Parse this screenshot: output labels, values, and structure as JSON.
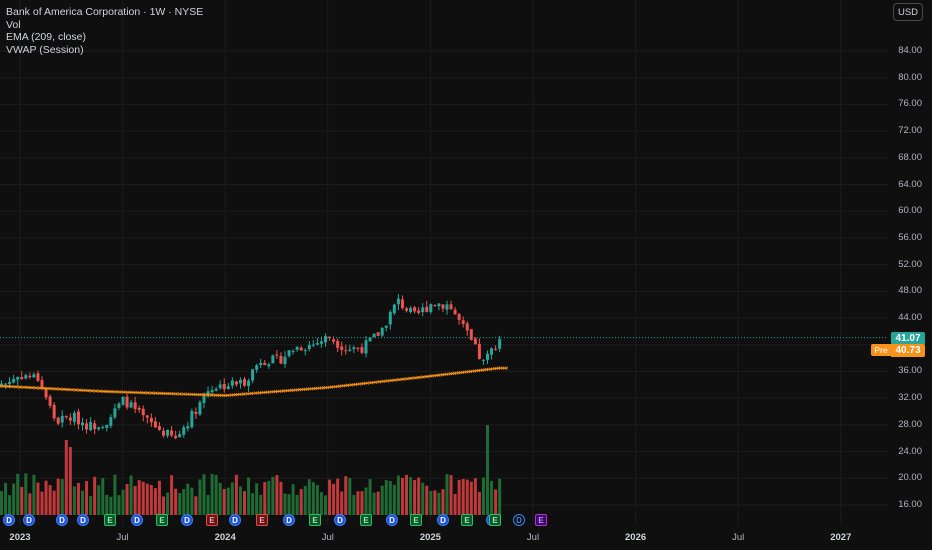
{
  "legend": {
    "title": "Bank of America Corporation · 1W · NYSE",
    "vol": "Vol",
    "ema": "EMA (209, close)",
    "vwap": "VWAP (Session)"
  },
  "currency_button": "USD",
  "y_ticks": [
    "84.00",
    "80.00",
    "76.00",
    "72.00",
    "68.00",
    "64.00",
    "60.00",
    "56.00",
    "52.00",
    "48.00",
    "44.00",
    "40.00",
    "36.00",
    "32.00",
    "28.00",
    "24.00",
    "20.00",
    "16.00"
  ],
  "x_ticks": [
    {
      "label": "2023",
      "bold": true
    },
    {
      "label": "Jul",
      "bold": false
    },
    {
      "label": "2024",
      "bold": true
    },
    {
      "label": "Jul",
      "bold": false
    },
    {
      "label": "2025",
      "bold": true
    },
    {
      "label": "Jul",
      "bold": false
    },
    {
      "label": "2026",
      "bold": true
    },
    {
      "label": "Jul",
      "bold": false
    },
    {
      "label": "2027",
      "bold": true
    }
  ],
  "last_price": "41.07",
  "pre_label": "Pre",
  "pre_price": "40.73",
  "colors": {
    "up": "#26a69a",
    "down": "#ef5350",
    "vol_up": "#1e6b33",
    "vol_down": "#c0393b",
    "ema": "#f7931a",
    "last_price_tag": "#26a69a",
    "pre_tag": "#f7931a"
  },
  "chart_data": {
    "type": "candlestick",
    "symbol": "BAC",
    "interval": "1W",
    "exchange": "NYSE",
    "currency": "USD",
    "ylim": [
      14,
      87
    ],
    "x_range": [
      "2022-12",
      "2027-03"
    ],
    "indicators": [
      "Vol",
      "EMA (209, close)",
      "VWAP (Session)"
    ],
    "close_path": [
      {
        "date": "2022-12",
        "close": 34.2
      },
      {
        "date": "2023-01",
        "close": 35.5
      },
      {
        "date": "2023-02",
        "close": 35.0
      },
      {
        "date": "2023-03",
        "close": 28.5
      },
      {
        "date": "2023-04",
        "close": 29.2
      },
      {
        "date": "2023-05",
        "close": 27.8
      },
      {
        "date": "2023-06",
        "close": 28.6
      },
      {
        "date": "2023-07",
        "close": 31.8
      },
      {
        "date": "2023-08",
        "close": 29.2
      },
      {
        "date": "2023-09",
        "close": 27.4
      },
      {
        "date": "2023-10",
        "close": 25.8
      },
      {
        "date": "2023-11",
        "close": 29.6
      },
      {
        "date": "2023-12",
        "close": 33.6
      },
      {
        "date": "2024-01",
        "close": 34.0
      },
      {
        "date": "2024-02",
        "close": 34.4
      },
      {
        "date": "2024-03",
        "close": 37.8
      },
      {
        "date": "2024-04",
        "close": 37.6
      },
      {
        "date": "2024-05",
        "close": 39.6
      },
      {
        "date": "2024-06",
        "close": 40.0
      },
      {
        "date": "2024-07",
        "close": 41.2
      },
      {
        "date": "2024-08",
        "close": 39.4
      },
      {
        "date": "2024-09",
        "close": 39.6
      },
      {
        "date": "2024-10",
        "close": 42.0
      },
      {
        "date": "2024-11",
        "close": 46.6
      },
      {
        "date": "2024-12",
        "close": 44.2
      },
      {
        "date": "2025-01",
        "close": 46.3
      },
      {
        "date": "2025-02",
        "close": 46.0
      },
      {
        "date": "2025-03",
        "close": 41.8
      },
      {
        "date": "2025-04",
        "close": 37.2
      },
      {
        "date": "2025-05",
        "close": 41.1
      }
    ],
    "ema_209": [
      {
        "date": "2022-12",
        "value": 33.8
      },
      {
        "date": "2023-06",
        "value": 33.0
      },
      {
        "date": "2024-01",
        "value": 32.4
      },
      {
        "date": "2024-07",
        "value": 33.6
      },
      {
        "date": "2025-01",
        "value": 35.3
      },
      {
        "date": "2025-05",
        "value": 36.5
      }
    ],
    "last_close": 41.07,
    "pre_market": 40.73
  },
  "event_markers": [
    {
      "type": "D",
      "variant": "d"
    },
    {
      "type": "D",
      "variant": "d"
    },
    {
      "type": "D",
      "variant": "d"
    },
    {
      "type": "D",
      "variant": "d"
    },
    {
      "type": "E",
      "variant": "green"
    },
    {
      "type": "D",
      "variant": "d"
    },
    {
      "type": "E",
      "variant": "green"
    },
    {
      "type": "D",
      "variant": "d"
    },
    {
      "type": "E",
      "variant": "red"
    },
    {
      "type": "D",
      "variant": "d"
    },
    {
      "type": "E",
      "variant": "red"
    },
    {
      "type": "D",
      "variant": "d"
    },
    {
      "type": "E",
      "variant": "green"
    },
    {
      "type": "D",
      "variant": "d"
    },
    {
      "type": "E",
      "variant": "green"
    },
    {
      "type": "D",
      "variant": "d"
    },
    {
      "type": "E",
      "variant": "green"
    },
    {
      "type": "D",
      "variant": "d"
    },
    {
      "type": "E",
      "variant": "green"
    },
    {
      "type": "D",
      "variant": "d"
    },
    {
      "type": "E",
      "variant": "green"
    },
    {
      "type": "D",
      "variant": "future"
    },
    {
      "type": "E",
      "variant": "purple"
    }
  ]
}
